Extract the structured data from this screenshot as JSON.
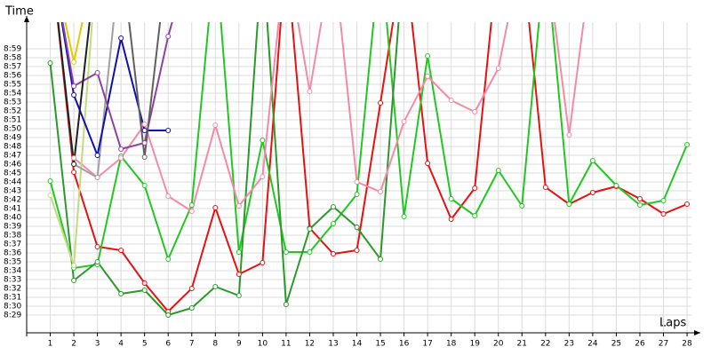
{
  "chart_data": {
    "type": "line",
    "x_label": "Laps",
    "y_label": "Time",
    "x": [
      1,
      2,
      3,
      4,
      5,
      6,
      7,
      8,
      9,
      10,
      11,
      12,
      13,
      14,
      15,
      16,
      17,
      18,
      19,
      20,
      21,
      22,
      23,
      24,
      25,
      26,
      27,
      28
    ],
    "xlim": [
      0,
      28.3
    ],
    "xticks": [
      1,
      2,
      3,
      4,
      5,
      6,
      7,
      8,
      9,
      10,
      11,
      12,
      13,
      14,
      15,
      16,
      17,
      18,
      19,
      20,
      21,
      22,
      23,
      24,
      25,
      26,
      27,
      28
    ],
    "ylim": [
      507,
      542
    ],
    "yticks": [
      {
        "value": 509,
        "label": "8:29"
      },
      {
        "value": 510,
        "label": "8:30"
      },
      {
        "value": 511,
        "label": "8:31"
      },
      {
        "value": 512,
        "label": "8:32"
      },
      {
        "value": 513,
        "label": "8:33"
      },
      {
        "value": 514,
        "label": "8:34"
      },
      {
        "value": 515,
        "label": "8:35"
      },
      {
        "value": 516,
        "label": "8:36"
      },
      {
        "value": 517,
        "label": "8:37"
      },
      {
        "value": 518,
        "label": "8:38"
      },
      {
        "value": 519,
        "label": "8:39"
      },
      {
        "value": 520,
        "label": "8:40"
      },
      {
        "value": 521,
        "label": "8:41"
      },
      {
        "value": 522,
        "label": "8:42"
      },
      {
        "value": 523,
        "label": "8:43"
      },
      {
        "value": 524,
        "label": "8:44"
      },
      {
        "value": 525,
        "label": "8:45"
      },
      {
        "value": 526,
        "label": "8:46"
      },
      {
        "value": 527,
        "label": "8:47"
      },
      {
        "value": 528,
        "label": "8:48"
      },
      {
        "value": 529,
        "label": "8:49"
      },
      {
        "value": 530,
        "label": "8:50"
      },
      {
        "value": 531,
        "label": "8:51"
      },
      {
        "value": 532,
        "label": "8:52"
      },
      {
        "value": 533,
        "label": "8:53"
      },
      {
        "value": 534,
        "label": "8:54"
      },
      {
        "value": 535,
        "label": "8:55"
      },
      {
        "value": 536,
        "label": "8:56"
      },
      {
        "value": 537,
        "label": "8:57"
      },
      {
        "value": 538,
        "label": "8:58"
      },
      {
        "value": 539,
        "label": "8:59"
      }
    ],
    "grid": true,
    "series": [
      {
        "color": "#e81010",
        "values": [
          550,
          525.1,
          516.7,
          516.3,
          512.6,
          509.4,
          512,
          521.1,
          513.6,
          514.9,
          550,
          518.8,
          515.9,
          516.3,
          532.9,
          550,
          526.1,
          519.8,
          523.3,
          550,
          550,
          523.4,
          521.5,
          522.8,
          523.5,
          522.1,
          520.4,
          521.5
        ]
      },
      {
        "color": "#22c822",
        "values": [
          524.1,
          514.3,
          514.7,
          526.9,
          523.6,
          515.3,
          521.4,
          550,
          516.1,
          528.7,
          516.1,
          516.1,
          519.3,
          522.6,
          550,
          520.1,
          538.2,
          522.1,
          520.2,
          525.3,
          521.3,
          550,
          521.5,
          526.4,
          523.6,
          521.4,
          521.9,
          528.2
        ]
      },
      {
        "color": "#2a9a2a",
        "values": [
          537.4,
          512.9,
          515.0,
          511.4,
          511.8,
          509.0,
          509.8,
          512.2,
          511.2,
          550,
          510.2,
          518.7,
          521.2,
          518.9,
          515.3,
          550,
          null,
          null,
          null,
          null,
          null,
          null,
          null,
          null,
          null,
          null,
          null,
          null
        ]
      },
      {
        "color": "#f48aa8",
        "values": [
          null,
          526.7,
          524.5,
          526.7,
          530.5,
          522.4,
          520.7,
          530.4,
          521.3,
          524.6,
          550,
          534.2,
          550,
          524.0,
          522.9,
          530.8,
          535.9,
          533.2,
          531.9,
          536.8,
          550,
          550,
          529.3,
          550,
          null,
          null,
          null,
          null
        ]
      },
      {
        "color": "#c0dc80",
        "values": [
          522.5,
          514.6,
          550,
          null,
          null,
          null,
          null,
          null,
          null,
          null,
          null,
          null,
          null,
          null,
          null,
          null,
          null,
          null,
          null,
          null,
          null,
          null,
          null,
          null,
          null,
          null,
          null,
          null
        ]
      },
      {
        "color": "#e0cc00",
        "values": [
          550,
          537.5,
          550,
          null,
          null,
          null,
          null,
          null,
          null,
          null,
          null,
          null,
          null,
          null,
          null,
          null,
          null,
          null,
          null,
          null,
          null,
          null,
          null,
          null,
          null,
          null,
          null,
          null
        ]
      },
      {
        "color": "#a0a0a0",
        "values": [
          550,
          526.0,
          524.5,
          550,
          null,
          null,
          null,
          null,
          null,
          null,
          null,
          null,
          null,
          null,
          null,
          null,
          null,
          null,
          null,
          null,
          null,
          null,
          null,
          null,
          null,
          null,
          null,
          null
        ]
      },
      {
        "color": "#1010b0",
        "values": [
          550,
          533.8,
          527.0,
          540.2,
          529.8,
          529.8,
          null,
          null,
          null,
          null,
          null,
          null,
          null,
          null,
          null,
          null,
          null,
          null,
          null,
          null,
          null,
          null,
          null,
          null,
          null,
          null,
          null,
          null
        ]
      },
      {
        "color": "#9040a0",
        "values": [
          550,
          534.8,
          536.3,
          527.7,
          528.4,
          540.4,
          550,
          null,
          null,
          null,
          null,
          null,
          null,
          null,
          null,
          null,
          null,
          null,
          null,
          null,
          null,
          null,
          null,
          null,
          null,
          null,
          null,
          null
        ]
      },
      {
        "color": "#202020",
        "values": [
          550,
          526.0,
          550,
          null,
          null,
          null,
          null,
          null,
          null,
          null,
          null,
          null,
          null,
          null,
          null,
          null,
          null,
          null,
          null,
          null,
          null,
          null,
          null,
          null,
          null,
          null,
          null,
          null
        ]
      },
      {
        "color": "#606060",
        "values": [
          null,
          null,
          null,
          550,
          526.8,
          550,
          null,
          null,
          null,
          null,
          null,
          null,
          null,
          null,
          null,
          null,
          null,
          null,
          null,
          null,
          null,
          null,
          null,
          null,
          null,
          null,
          null,
          null
        ]
      }
    ]
  }
}
